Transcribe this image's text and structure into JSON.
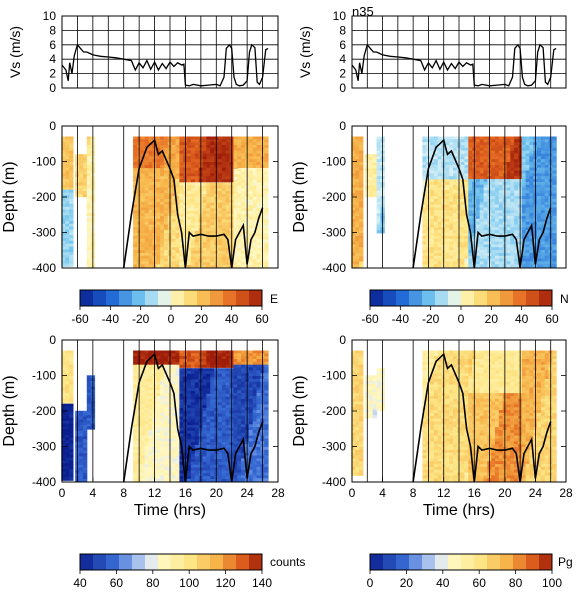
{
  "figure": {
    "annotation": "n35",
    "vs_ylabel": "Vs (m/s)",
    "depth_ylabel": "Depth (m)",
    "time_xlabel": "Time (hrs)",
    "colorbar_units": [
      "E",
      "N",
      "counts",
      "Pg"
    ]
  },
  "chart_data": [
    {
      "type": "line",
      "panel": "vs-left",
      "ylabel": "Vs (m/s)",
      "xlim": [
        0,
        28
      ],
      "ylim": [
        0,
        10
      ],
      "yticks": [
        0,
        2,
        4,
        6,
        8,
        10
      ],
      "grid": true,
      "series": [
        {
          "x": [
            0.0,
            0.5,
            0.8,
            1.0,
            1.3,
            1.6,
            2.0,
            2.4,
            2.8,
            3.2,
            3.6,
            4.0,
            5.0,
            6.0,
            7.0,
            8.0,
            9.0,
            9.5,
            10.0,
            10.5,
            11.0,
            11.5,
            12.0,
            12.5,
            13.0,
            13.5,
            14.0,
            14.5,
            15.0,
            15.5,
            15.8,
            16.0,
            16.5,
            17.0,
            18.0,
            19.0,
            20.0,
            20.5,
            21.0,
            21.3,
            21.7,
            22.0,
            22.3,
            22.6,
            23.0,
            23.5,
            24.0,
            24.3,
            24.6,
            25.0,
            25.3,
            25.6,
            26.0,
            26.4,
            26.7
          ],
          "y": [
            3.2,
            2.5,
            1.0,
            3.5,
            2.0,
            4.5,
            6.0,
            5.5,
            5.0,
            5.0,
            4.8,
            4.6,
            4.4,
            4.3,
            4.2,
            4.0,
            3.8,
            2.5,
            3.5,
            2.8,
            3.8,
            2.6,
            3.6,
            2.5,
            3.4,
            2.7,
            3.6,
            3.0,
            3.5,
            3.2,
            3.3,
            0.4,
            0.3,
            0.5,
            0.3,
            0.4,
            0.5,
            0.3,
            1.5,
            5.5,
            6.0,
            5.5,
            1.5,
            0.5,
            0.3,
            0.4,
            1.0,
            5.0,
            6.0,
            5.6,
            0.8,
            0.5,
            1.5,
            5.3,
            5.5
          ]
        }
      ]
    },
    {
      "type": "line",
      "panel": "vs-right",
      "ylabel": "Vs (m/s)",
      "xlim": [
        0,
        28
      ],
      "ylim": [
        0,
        10
      ],
      "yticks": [
        0,
        2,
        4,
        6,
        8,
        10
      ],
      "grid": true,
      "series": [
        {
          "x": [
            0.0,
            0.5,
            0.8,
            1.0,
            1.3,
            1.6,
            2.0,
            2.4,
            2.8,
            3.2,
            3.6,
            4.0,
            5.0,
            6.0,
            7.0,
            8.0,
            9.0,
            9.5,
            10.0,
            10.5,
            11.0,
            11.5,
            12.0,
            12.5,
            13.0,
            13.5,
            14.0,
            14.5,
            15.0,
            15.5,
            15.8,
            16.0,
            16.5,
            17.0,
            18.0,
            19.0,
            20.0,
            20.5,
            21.0,
            21.3,
            21.7,
            22.0,
            22.3,
            22.6,
            23.0,
            23.5,
            24.0,
            24.3,
            24.6,
            25.0,
            25.3,
            25.6,
            26.0,
            26.4,
            26.7
          ],
          "y": [
            3.2,
            2.5,
            1.0,
            3.5,
            2.0,
            4.5,
            6.0,
            5.5,
            5.0,
            5.0,
            4.8,
            4.6,
            4.4,
            4.3,
            4.2,
            4.0,
            3.8,
            2.5,
            3.5,
            2.8,
            3.8,
            2.6,
            3.6,
            2.5,
            3.4,
            2.7,
            3.6,
            3.0,
            3.5,
            3.2,
            3.3,
            0.4,
            0.3,
            0.5,
            0.3,
            0.4,
            0.5,
            0.3,
            1.5,
            5.5,
            6.0,
            5.5,
            1.5,
            0.5,
            0.3,
            0.4,
            1.0,
            5.0,
            6.0,
            5.6,
            0.8,
            0.5,
            1.5,
            5.3,
            5.5
          ]
        }
      ]
    },
    {
      "type": "heatmap",
      "panel": "depth-top-left",
      "variable": "E",
      "ylabel": "Depth (m)",
      "xlim": [
        0,
        28
      ],
      "ylim": [
        -400,
        0
      ],
      "yticks": [
        0,
        -100,
        -200,
        -300,
        -400
      ],
      "colorbar": {
        "label": "E",
        "ticks": [
          -60,
          -40,
          -20,
          0,
          20,
          40,
          60
        ],
        "range": [
          -60,
          60
        ]
      },
      "regions": [
        {
          "x": [
            0.2,
            1.2
          ],
          "depth": [
            -380,
            -30
          ],
          "value": 14
        },
        {
          "x": [
            0.2,
            1.2
          ],
          "depth": [
            -400,
            -180
          ],
          "value": -10
        },
        {
          "x": [
            2.0,
            3.0
          ],
          "depth": [
            -200,
            -80
          ],
          "value": 10
        },
        {
          "x": [
            3.5,
            4.3
          ],
          "depth": [
            -400,
            -30
          ],
          "value": 8
        },
        {
          "x": [
            9.5,
            15.5
          ],
          "depth": [
            -400,
            -30
          ],
          "value": 18
        },
        {
          "x": [
            9.5,
            15.5
          ],
          "depth": [
            -120,
            -30
          ],
          "value": 32
        },
        {
          "x": [
            15.5,
            22.5
          ],
          "depth": [
            -160,
            -30
          ],
          "value": 50
        },
        {
          "x": [
            15.5,
            22.5
          ],
          "depth": [
            -400,
            -160
          ],
          "value": 12
        },
        {
          "x": [
            22.5,
            26.5
          ],
          "depth": [
            -120,
            -30
          ],
          "value": 30
        },
        {
          "x": [
            22.5,
            26.5
          ],
          "depth": [
            -400,
            -120
          ],
          "value": 8
        }
      ],
      "bottom_line": {
        "x": [
          8.0,
          9.0,
          10.0,
          11.0,
          12.0,
          12.5,
          13.0,
          14.0,
          14.5,
          15.0,
          15.5,
          16.0,
          16.5,
          17.0,
          18.0,
          19.0,
          20.0,
          21.0,
          21.5,
          22.0,
          22.5,
          23.0,
          23.5,
          24.0,
          24.5,
          25.0,
          25.5,
          26.0
        ],
        "y": [
          -400,
          -250,
          -120,
          -60,
          -40,
          -80,
          -70,
          -120,
          -150,
          -250,
          -300,
          -400,
          -300,
          -310,
          -305,
          -310,
          -310,
          -305,
          -320,
          -400,
          -320,
          -300,
          -280,
          -390,
          -320,
          -300,
          -260,
          -230
        ]
      }
    },
    {
      "type": "heatmap",
      "panel": "depth-top-right",
      "variable": "N",
      "ylabel": "Depth (m)",
      "xlim": [
        0,
        28
      ],
      "ylim": [
        -400,
        0
      ],
      "yticks": [
        0,
        -100,
        -200,
        -300,
        -400
      ],
      "colorbar": {
        "label": "N",
        "ticks": [
          -60,
          -40,
          -20,
          0,
          20,
          40,
          60
        ],
        "range": [
          -60,
          60
        ]
      },
      "regions": [
        {
          "x": [
            0.2,
            1.2
          ],
          "depth": [
            -400,
            -30
          ],
          "value": 20
        },
        {
          "x": [
            2.0,
            3.0
          ],
          "depth": [
            -200,
            -80
          ],
          "value": 10
        },
        {
          "x": [
            3.5,
            4.3
          ],
          "depth": [
            -300,
            -30
          ],
          "value": -14
        },
        {
          "x": [
            9.5,
            15.5
          ],
          "depth": [
            -400,
            -30
          ],
          "value": 5
        },
        {
          "x": [
            9.5,
            15.5
          ],
          "depth": [
            -150,
            -30
          ],
          "value": -16
        },
        {
          "x": [
            15.5,
            22.5
          ],
          "depth": [
            -150,
            -30
          ],
          "value": 48
        },
        {
          "x": [
            15.5,
            22.5
          ],
          "depth": [
            -400,
            -150
          ],
          "value": -18
        },
        {
          "x": [
            22.5,
            26.5
          ],
          "depth": [
            -400,
            -30
          ],
          "value": -24
        }
      ],
      "bottom_line": {
        "x": [
          8.0,
          9.0,
          10.0,
          11.0,
          12.0,
          12.5,
          13.0,
          14.0,
          14.5,
          15.0,
          15.5,
          16.0,
          16.5,
          17.0,
          18.0,
          19.0,
          20.0,
          21.0,
          21.5,
          22.0,
          22.5,
          23.0,
          23.5,
          24.0,
          24.5,
          25.0,
          25.5,
          26.0
        ],
        "y": [
          -400,
          -250,
          -120,
          -60,
          -40,
          -80,
          -70,
          -120,
          -150,
          -250,
          -300,
          -400,
          -300,
          -310,
          -305,
          -310,
          -310,
          -305,
          -320,
          -400,
          -320,
          -300,
          -280,
          -390,
          -320,
          -300,
          -260,
          -230
        ]
      }
    },
    {
      "type": "heatmap",
      "panel": "depth-bottom-left",
      "variable": "counts",
      "ylabel": "Depth (m)",
      "xlabel": "Time (hrs)",
      "xlim": [
        0,
        28
      ],
      "xticks": [
        0,
        4,
        8,
        12,
        16,
        20,
        24,
        28
      ],
      "ylim": [
        -400,
        0
      ],
      "yticks": [
        0,
        -100,
        -200,
        -300,
        -400
      ],
      "colorbar": {
        "label": "counts",
        "ticks": [
          40,
          60,
          80,
          100,
          120,
          140
        ],
        "range": [
          40,
          140
        ]
      },
      "regions": [
        {
          "x": [
            0.2,
            1.2
          ],
          "depth": [
            -180,
            -30
          ],
          "value": 95
        },
        {
          "x": [
            0.2,
            1.2
          ],
          "depth": [
            -400,
            -180
          ],
          "value": 45
        },
        {
          "x": [
            2.0,
            3.0
          ],
          "depth": [
            -400,
            -200
          ],
          "value": 50
        },
        {
          "x": [
            3.5,
            4.3
          ],
          "depth": [
            -250,
            -100
          ],
          "value": 60
        },
        {
          "x": [
            9.5,
            15.5
          ],
          "depth": [
            -70,
            -30
          ],
          "value": 135
        },
        {
          "x": [
            9.5,
            15.5
          ],
          "depth": [
            -400,
            -70
          ],
          "value": 90
        },
        {
          "x": [
            15.5,
            22.5
          ],
          "depth": [
            -80,
            -30
          ],
          "value": 135
        },
        {
          "x": [
            15.5,
            22.5
          ],
          "depth": [
            -400,
            -80
          ],
          "value": 50
        },
        {
          "x": [
            22.5,
            26.5
          ],
          "depth": [
            -70,
            -30
          ],
          "value": 125
        },
        {
          "x": [
            22.5,
            26.5
          ],
          "depth": [
            -400,
            -70
          ],
          "value": 55
        }
      ],
      "bottom_line": {
        "x": [
          8.0,
          9.0,
          10.0,
          11.0,
          12.0,
          12.5,
          13.0,
          14.0,
          14.5,
          15.0,
          15.5,
          16.0,
          16.5,
          17.0,
          18.0,
          19.0,
          20.0,
          21.0,
          21.5,
          22.0,
          22.5,
          23.0,
          23.5,
          24.0,
          24.5,
          25.0,
          25.5,
          26.0
        ],
        "y": [
          -400,
          -250,
          -120,
          -60,
          -40,
          -80,
          -70,
          -120,
          -150,
          -250,
          -300,
          -400,
          -300,
          -310,
          -305,
          -310,
          -310,
          -305,
          -320,
          -400,
          -320,
          -300,
          -280,
          -390,
          -320,
          -300,
          -260,
          -230
        ]
      }
    },
    {
      "type": "heatmap",
      "panel": "depth-bottom-right",
      "variable": "Pg",
      "ylabel": "Depth (m)",
      "xlabel": "Time (hrs)",
      "xlim": [
        0,
        28
      ],
      "xticks": [
        0,
        4,
        8,
        12,
        16,
        20,
        24,
        28
      ],
      "ylim": [
        -400,
        0
      ],
      "yticks": [
        0,
        -100,
        -200,
        -300,
        -400
      ],
      "colorbar": {
        "label": "Pg",
        "ticks": [
          0,
          20,
          40,
          60,
          80,
          100
        ],
        "range": [
          0,
          100
        ]
      },
      "regions": [
        {
          "x": [
            0.2,
            1.2
          ],
          "depth": [
            -380,
            -30
          ],
          "value": 60
        },
        {
          "x": [
            2.0,
            3.0
          ],
          "depth": [
            -220,
            -100
          ],
          "value": 40
        },
        {
          "x": [
            3.5,
            4.3
          ],
          "depth": [
            -200,
            -80
          ],
          "value": 40
        },
        {
          "x": [
            9.5,
            15.5
          ],
          "depth": [
            -400,
            -30
          ],
          "value": 58
        },
        {
          "x": [
            15.5,
            22.5
          ],
          "depth": [
            -150,
            -30
          ],
          "value": 62
        },
        {
          "x": [
            15.5,
            22.5
          ],
          "depth": [
            -400,
            -150
          ],
          "value": 76
        },
        {
          "x": [
            22.5,
            26.5
          ],
          "depth": [
            -400,
            -30
          ],
          "value": 70
        }
      ],
      "bottom_line": {
        "x": [
          8.0,
          9.0,
          10.0,
          11.0,
          12.0,
          12.5,
          13.0,
          14.0,
          14.5,
          15.0,
          15.5,
          16.0,
          16.5,
          17.0,
          18.0,
          19.0,
          20.0,
          21.0,
          21.5,
          22.0,
          22.5,
          23.0,
          23.5,
          24.0,
          24.5,
          25.0,
          25.5,
          26.0
        ],
        "y": [
          -400,
          -250,
          -120,
          -60,
          -40,
          -80,
          -70,
          -120,
          -150,
          -250,
          -300,
          -400,
          -300,
          -310,
          -305,
          -310,
          -310,
          -305,
          -320,
          -400,
          -320,
          -300,
          -280,
          -390,
          -320,
          -300,
          -260,
          -230
        ]
      }
    }
  ]
}
